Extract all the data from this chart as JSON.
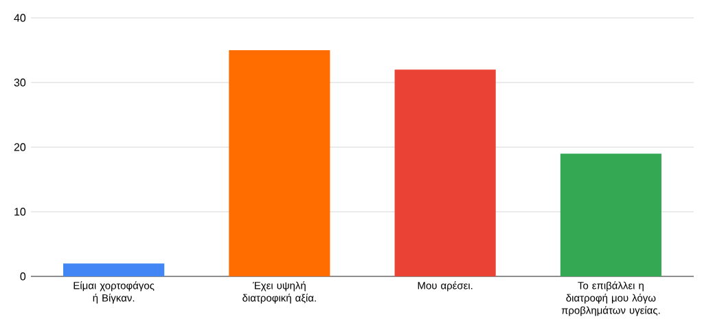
{
  "chart_data": {
    "type": "bar",
    "categories": [
      "Είμαι χορτοφάγος ή Βίγκαν.",
      "Έχει υψηλή διατροφική αξία.",
      "Μου αρέσει.",
      "Το επιβάλλει η διατροφή μου λόγω προβλημάτων υγείας."
    ],
    "values": [
      2,
      35,
      32,
      19
    ],
    "colors": [
      "#4285f4",
      "#ff6d01",
      "#ea4335",
      "#34a853"
    ],
    "ylim": [
      0,
      40
    ],
    "yticks": [
      0,
      10,
      20,
      30,
      40
    ],
    "grid": "y"
  }
}
